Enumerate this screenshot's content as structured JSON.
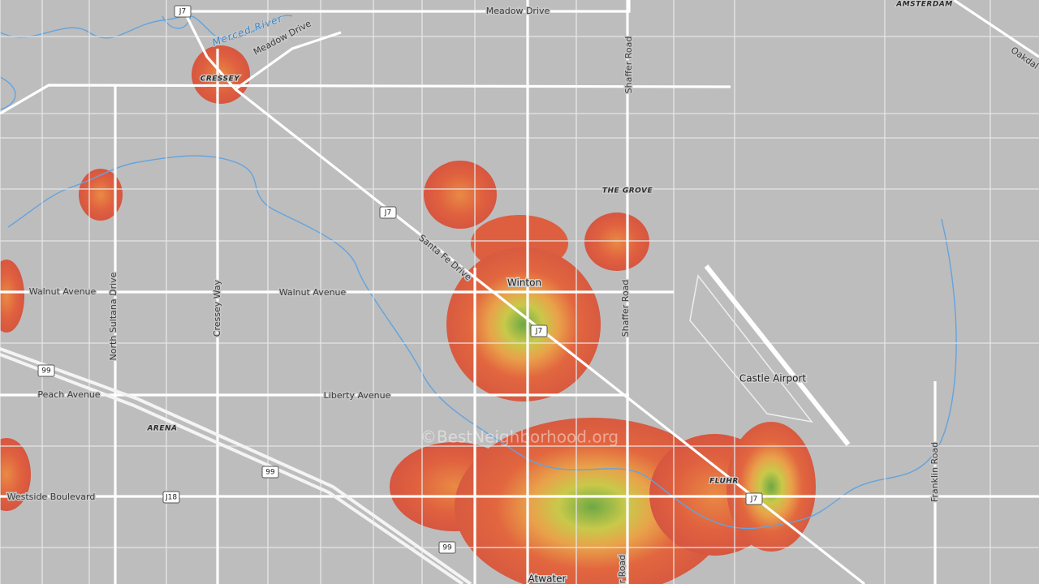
{
  "map": {
    "places": [
      "AMSTERDAM",
      "CRESSEY",
      "THE GROVE",
      "Winton",
      "ARENA",
      "Castle Airport",
      "FLUHR",
      "Atwater"
    ],
    "roads": [
      "Meadow Drive",
      "Meadow Drive",
      "Oakdal",
      "Shaffer Road",
      "Santa Fe Drive",
      "Walnut Avenue",
      "Walnut Avenue",
      "North Sultana Drive",
      "Cressey Way",
      "Shaffer Road",
      "Peach Avenue",
      "Liberty Avenue",
      "Westside Boulevard",
      "Franklin Road",
      "er Road"
    ],
    "water": [
      "Merced River"
    ],
    "shields": [
      "J7",
      "J7",
      "J7",
      "J7",
      "99",
      "99",
      "99",
      "J18"
    ],
    "watermark": "©BestNeighborhood.org"
  }
}
